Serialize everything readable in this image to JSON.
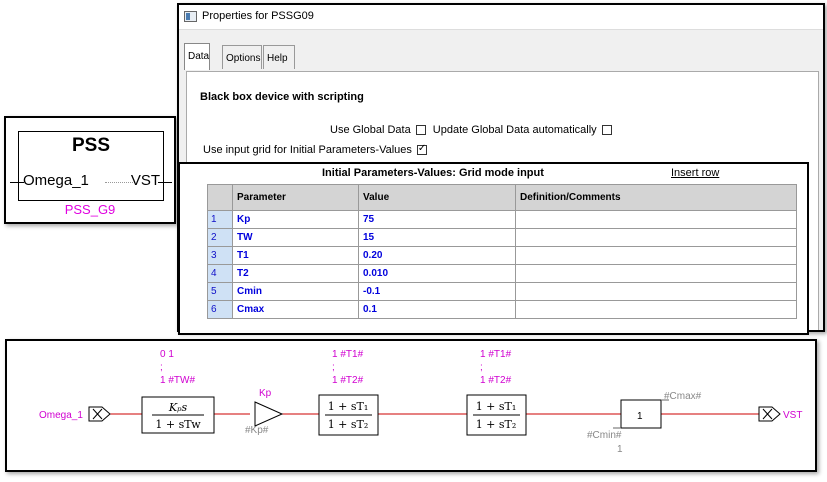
{
  "pss_block": {
    "title": "PSS",
    "input": "Omega_1",
    "output": "VST",
    "name": "PSS_G9"
  },
  "window": {
    "title": "Properties for PSSG09",
    "tabs": [
      {
        "label": "Data",
        "active": true
      },
      {
        "label": "Options",
        "active": false
      },
      {
        "label": "Help",
        "active": false
      }
    ],
    "heading": "Black box device with scripting",
    "use_global_data_label": "Use Global Data",
    "use_global_data_checked": false,
    "update_global_label": "Update Global Data automatically",
    "update_global_checked": false,
    "use_input_grid_label": "Use input grid for Initial Parameters-Values",
    "use_input_grid_checked": true
  },
  "grid": {
    "title": "Initial Parameters-Values: Grid mode input",
    "insert_row": "Insert row",
    "columns": [
      "Parameter",
      "Value",
      "Definition/Comments"
    ],
    "rows": [
      {
        "num": "1",
        "param": "Kp",
        "value": "75",
        "comment": ""
      },
      {
        "num": "2",
        "param": "TW",
        "value": "15",
        "comment": ""
      },
      {
        "num": "3",
        "param": "T1",
        "value": "0.20",
        "comment": ""
      },
      {
        "num": "4",
        "param": "T2",
        "value": "0.010",
        "comment": ""
      },
      {
        "num": "5",
        "param": "Cmin",
        "value": "-0.1",
        "comment": ""
      },
      {
        "num": "6",
        "param": "Cmax",
        "value": "0.1",
        "comment": ""
      }
    ]
  },
  "diagram": {
    "input_label": "Omega_1",
    "output_label": "VST",
    "washout_params": [
      "0 1",
      ";",
      "1 #TW#"
    ],
    "gain_label": "Kp",
    "gain_param": "#Kp#",
    "leadlag1_params": [
      "1 #T1#",
      ";",
      "1 #T2#"
    ],
    "leadlag2_params": [
      "1 #T1#",
      ";",
      "1 #T2#"
    ],
    "limiter_value": "1",
    "limiter_max": "#Cmax#",
    "limiter_min": "#Cmin#",
    "limiter_min_sub": "1",
    "colors": {
      "signal_line": "#cc0000",
      "param_text": "#d000d0",
      "blue_text": "#0000dd"
    }
  }
}
